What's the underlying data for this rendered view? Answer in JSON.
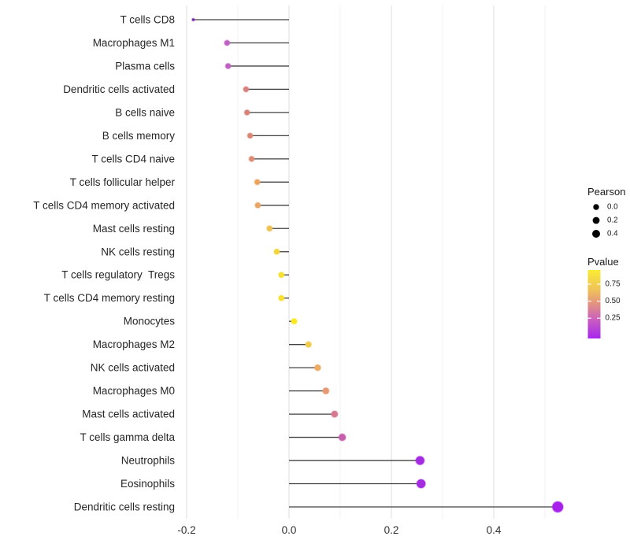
{
  "figure": {
    "background": "#FFFFFF",
    "stem_color": "#404040",
    "gridline_major_color": "#E5E5E5",
    "gridline_minor_color": "#F0F0F0"
  },
  "chart_data": {
    "type": "scatter",
    "style": "horizontal-lollipop",
    "title": "",
    "xlabel": "",
    "ylabel": "",
    "legend_position": "right",
    "grid": "vertical-only",
    "x_axis": {
      "range": [
        -0.225,
        0.555
      ],
      "ticks": [
        {
          "value": -0.2,
          "label": "-0.2"
        },
        {
          "value": 0.0,
          "label": "0.0"
        },
        {
          "value": 0.2,
          "label": "0.2"
        },
        {
          "value": 0.4,
          "label": "0.4"
        }
      ],
      "gridlines_major": [
        -0.2,
        0.0,
        0.2,
        0.4
      ],
      "gridlines_minor": [
        -0.1,
        0.1,
        0.3,
        0.5
      ]
    },
    "points": [
      {
        "label": "T cells CD8",
        "pearson": -0.187,
        "color": "#7C27B0",
        "dot_radius": 1.6
      },
      {
        "label": "Macrophages M1",
        "pearson": -0.121,
        "color": "#C160C4",
        "dot_radius": 3.4
      },
      {
        "label": "Plasma cells",
        "pearson": -0.119,
        "color": "#C160C4",
        "dot_radius": 3.4
      },
      {
        "label": "Dendritic cells activated",
        "pearson": -0.084,
        "color": "#D8827F",
        "dot_radius": 3.4
      },
      {
        "label": "B cells naive",
        "pearson": -0.082,
        "color": "#D8827C",
        "dot_radius": 3.4
      },
      {
        "label": "B cells memory",
        "pearson": -0.076,
        "color": "#DA8775",
        "dot_radius": 3.4
      },
      {
        "label": "T cells CD4 naive",
        "pearson": -0.073,
        "color": "#DC8C73",
        "dot_radius": 3.4
      },
      {
        "label": "T cells follicular helper",
        "pearson": -0.062,
        "color": "#ECA55F",
        "dot_radius": 3.5
      },
      {
        "label": "T cells CD4 memory activated",
        "pearson": -0.061,
        "color": "#EAA464",
        "dot_radius": 3.5
      },
      {
        "label": "Mast cells resting",
        "pearson": -0.038,
        "color": "#EFC153",
        "dot_radius": 3.5
      },
      {
        "label": "NK cells resting",
        "pearson": -0.024,
        "color": "#F4D43C",
        "dot_radius": 3.5
      },
      {
        "label": "T cells regulatory  Tregs",
        "pearson": -0.015,
        "color": "#F7E02E",
        "dot_radius": 3.5
      },
      {
        "label": "T cells CD4 memory resting",
        "pearson": -0.015,
        "color": "#F7E02E",
        "dot_radius": 3.5
      },
      {
        "label": "Monocytes",
        "pearson": 0.01,
        "color": "#FAE823",
        "dot_radius": 3.6
      },
      {
        "label": "Macrophages M2",
        "pearson": 0.038,
        "color": "#F1CB4B",
        "dot_radius": 3.7
      },
      {
        "label": "NK cells activated",
        "pearson": 0.056,
        "color": "#EEAB62",
        "dot_radius": 3.9
      },
      {
        "label": "Macrophages M0",
        "pearson": 0.072,
        "color": "#E69972",
        "dot_radius": 4.0
      },
      {
        "label": "Mast cells activated",
        "pearson": 0.089,
        "color": "#D77890",
        "dot_radius": 4.1
      },
      {
        "label": "T cells gamma delta",
        "pearson": 0.104,
        "color": "#C75FAD",
        "dot_radius": 4.4
      },
      {
        "label": "Neutrophils",
        "pearson": 0.256,
        "color": "#A32BE0",
        "dot_radius": 5.4
      },
      {
        "label": "Eosinophils",
        "pearson": 0.258,
        "color": "#A32BE0",
        "dot_radius": 5.5
      },
      {
        "label": "Dendritic cells resting",
        "pearson": 0.525,
        "color": "#A621EA",
        "dot_radius": 6.8
      }
    ],
    "legend": {
      "pearson": {
        "title": "Pearson",
        "dot_color": "#000000",
        "items": [
          {
            "label": "0.0",
            "r": 3.7
          },
          {
            "label": "0.2",
            "r": 4.4
          },
          {
            "label": "0.4",
            "r": 5.0
          }
        ]
      },
      "pvalue": {
        "title": "Pvalue",
        "ticks": [
          "0.75",
          "0.50",
          "0.25"
        ],
        "gradient_stops": [
          {
            "offset": "0%",
            "color": "#F9EC33"
          },
          {
            "offset": "30%",
            "color": "#EFC05B"
          },
          {
            "offset": "50%",
            "color": "#E29183"
          },
          {
            "offset": "72%",
            "color": "#CB5FBF"
          },
          {
            "offset": "100%",
            "color": "#A826EE"
          }
        ]
      }
    }
  }
}
